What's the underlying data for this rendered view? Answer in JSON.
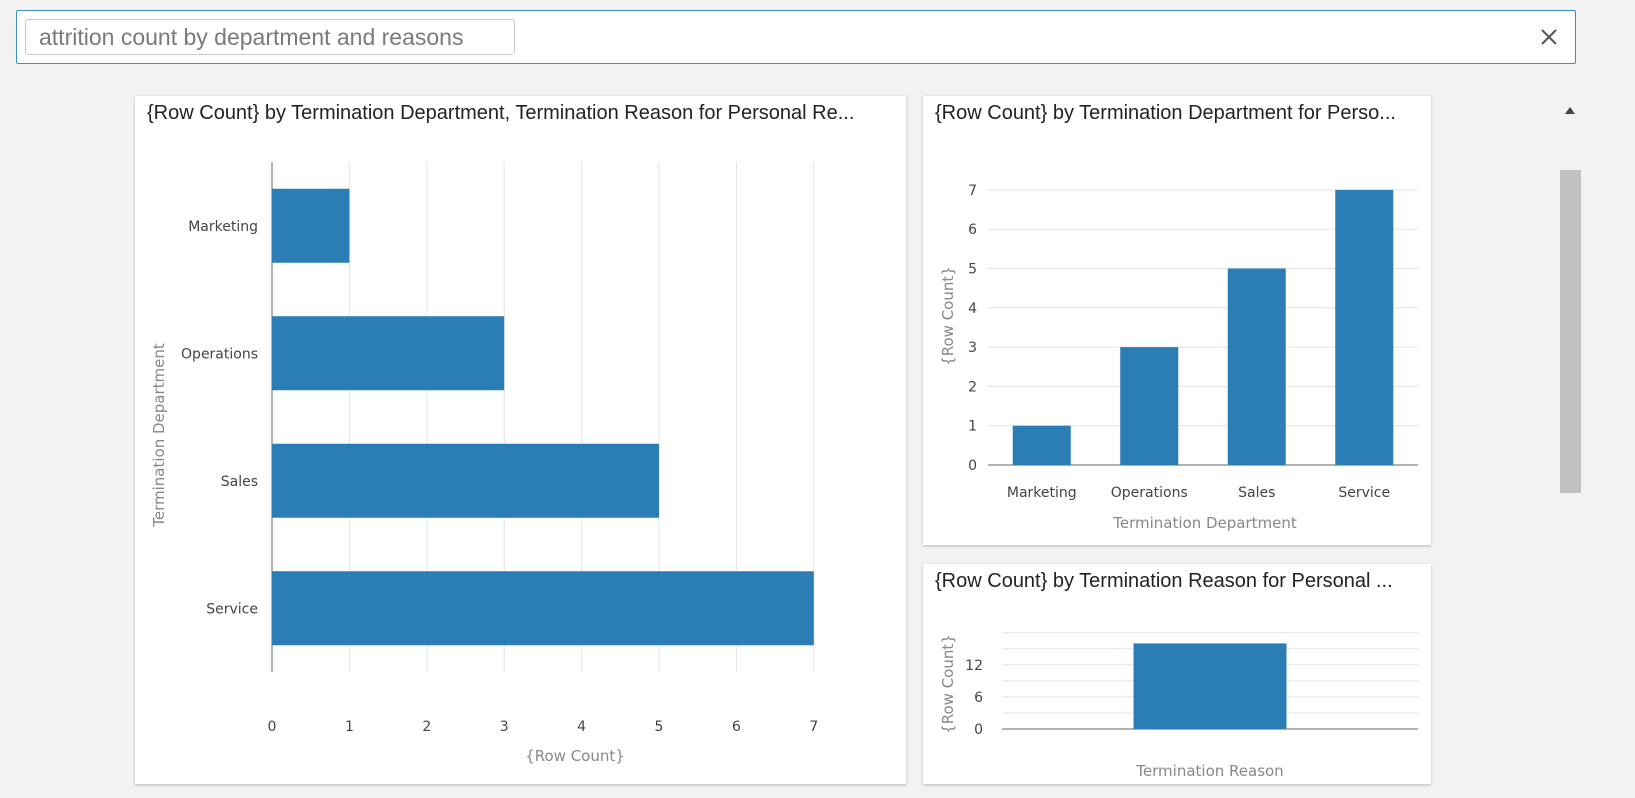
{
  "search": {
    "query": "attrition count by department and reasons",
    "clear_icon": "close-icon"
  },
  "scrollbar": {
    "up_icon": "triangle-up-icon"
  },
  "charts": {
    "left": {
      "title": "{Row Count} by Termination Department, Termination Reason for Personal Re..."
    },
    "top_right": {
      "title": "{Row Count} by Termination Department for Perso..."
    },
    "bottom_right": {
      "title": "{Row Count} by Termination Reason for Personal ..."
    }
  },
  "colors": {
    "bar": "#2a7db5",
    "accent": "#3b8ec8"
  },
  "chart_data": [
    {
      "type": "bar",
      "orientation": "horizontal",
      "title": "{Row Count} by Termination Department, Termination Reason for Personal Re...",
      "categories": [
        "Marketing",
        "Operations",
        "Sales",
        "Service"
      ],
      "values": [
        1,
        3,
        5,
        7
      ],
      "xlabel": "{Row Count}",
      "ylabel": "Termination Department",
      "xlim": [
        0,
        7
      ],
      "xticks": [
        "0",
        "1",
        "2",
        "3",
        "4",
        "5",
        "6",
        "7"
      ],
      "grid": true
    },
    {
      "type": "bar",
      "orientation": "vertical",
      "title": "{Row Count} by Termination Department for Perso...",
      "categories": [
        "Marketing",
        "Operations",
        "Sales",
        "Service"
      ],
      "values": [
        1,
        3,
        5,
        7
      ],
      "xlabel": "Termination Department",
      "ylabel": "{Row Count}",
      "ylim": [
        0,
        7
      ],
      "yticks": [
        "0",
        "1",
        "2",
        "3",
        "4",
        "5",
        "6",
        "7"
      ],
      "grid": true
    },
    {
      "type": "bar",
      "orientation": "vertical",
      "title": "{Row Count} by Termination Reason for Personal ...",
      "categories": [
        ""
      ],
      "values": [
        16
      ],
      "xlabel": "Termination Reason",
      "ylabel": "{Row Count}",
      "ylim": [
        0,
        18
      ],
      "yticks": [
        "0",
        "6",
        "12"
      ],
      "grid": true
    }
  ]
}
